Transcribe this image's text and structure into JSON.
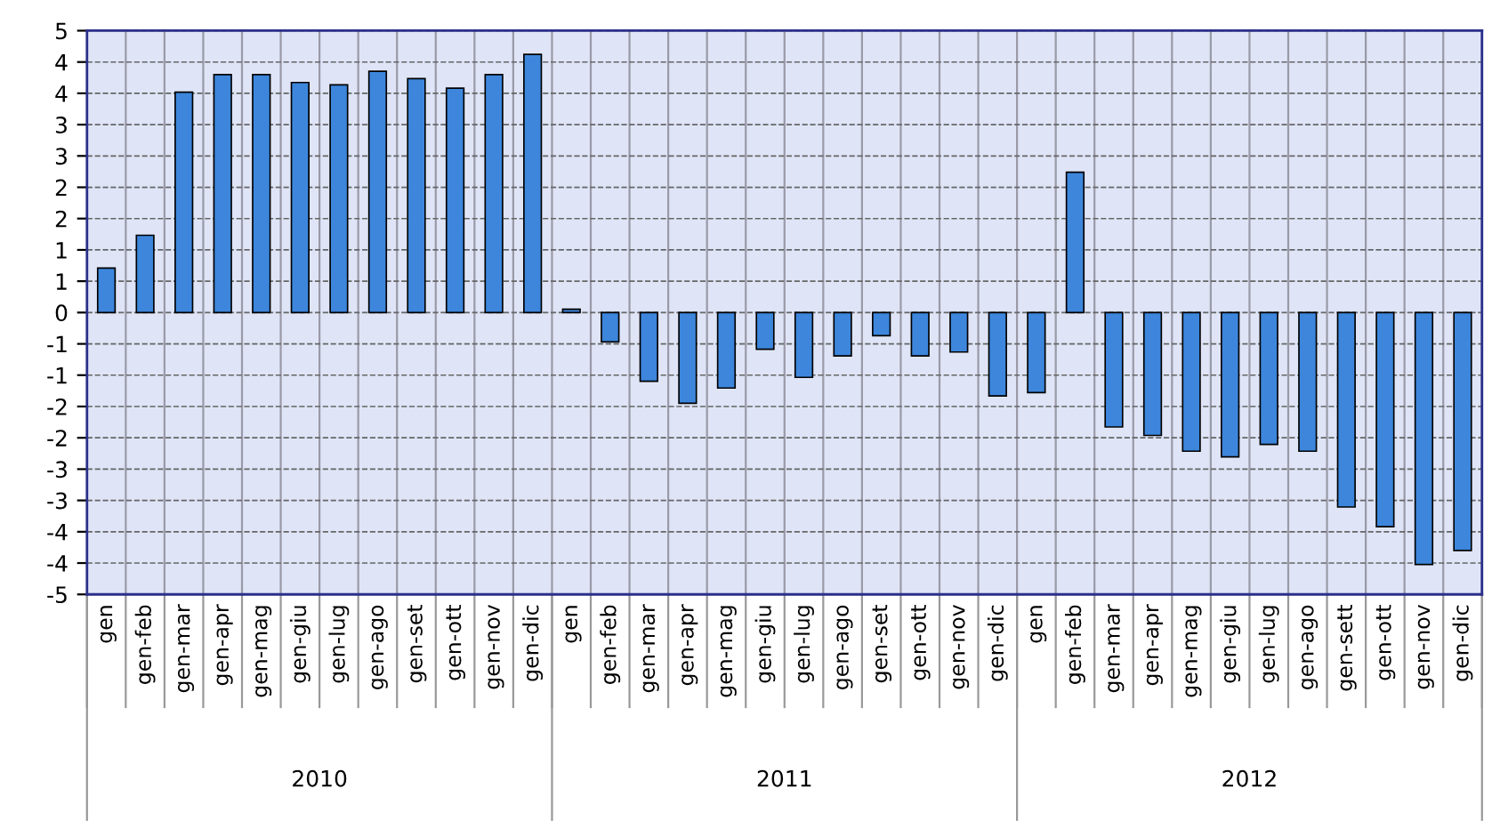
{
  "chart_data": {
    "type": "bar",
    "categories": [
      "gen",
      "gen-feb",
      "gen-mar",
      "gen-apr",
      "gen-mag",
      "gen-giu",
      "gen-lug",
      "gen-ago",
      "gen-set",
      "gen-ott",
      "gen-nov",
      "gen-dic",
      "gen",
      "gen-feb",
      "gen-mar",
      "gen-apr",
      "gen-mag",
      "gen-giu",
      "gen-lug",
      "gen-ago",
      "gen-set",
      "gen-ott",
      "gen-nov",
      "gen-dic",
      "gen",
      "gen-feb",
      "gen-mar",
      "gen-apr",
      "gen-mag",
      "gen-giu",
      "gen-lug",
      "gen-ago",
      "gen-sett",
      "gen-ott",
      "gen-nov",
      "gen-dic"
    ],
    "values": [
      0.79,
      1.37,
      3.91,
      4.22,
      4.22,
      4.08,
      4.04,
      4.28,
      4.15,
      3.98,
      4.22,
      4.58,
      0.06,
      -0.52,
      -1.22,
      -1.61,
      -1.34,
      -0.65,
      -1.15,
      -0.77,
      -0.41,
      -0.77,
      -0.7,
      -1.48,
      -1.42,
      2.49,
      -2.03,
      -2.18,
      -2.46,
      -2.56,
      -2.34,
      -2.46,
      -3.45,
      -3.8,
      -4.47,
      -4.22
    ],
    "color": "#3d86dc",
    "ylim": [
      -5,
      5
    ],
    "yticks": [
      {
        "value": -5,
        "label": "-5"
      },
      {
        "value": -4.444,
        "label": "-4"
      },
      {
        "value": -3.889,
        "label": "-4"
      },
      {
        "value": -3.333,
        "label": "-3"
      },
      {
        "value": -2.778,
        "label": "-3"
      },
      {
        "value": -2.222,
        "label": "-2"
      },
      {
        "value": -1.667,
        "label": "-2"
      },
      {
        "value": -1.111,
        "label": "-1"
      },
      {
        "value": -0.556,
        "label": "-1"
      },
      {
        "value": 0,
        "label": "0"
      },
      {
        "value": 0.556,
        "label": "1"
      },
      {
        "value": 1.111,
        "label": "1"
      },
      {
        "value": 1.667,
        "label": "2"
      },
      {
        "value": 2.222,
        "label": "2"
      },
      {
        "value": 2.778,
        "label": "3"
      },
      {
        "value": 3.333,
        "label": "3"
      },
      {
        "value": 3.889,
        "label": "4"
      },
      {
        "value": 4.444,
        "label": "4"
      },
      {
        "value": 5,
        "label": "5"
      }
    ],
    "annotations": [
      "2010",
      "2011",
      "2012"
    ],
    "grid": true,
    "legend": false
  }
}
